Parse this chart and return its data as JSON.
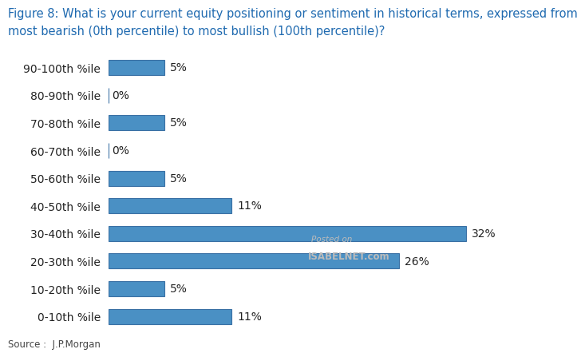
{
  "title_line1": "Figure 8: What is your current equity positioning or sentiment in historical terms, expressed from",
  "title_line2": "most bearish (0th percentile) to most bullish (100th percentile)?",
  "categories_bottom_to_top": [
    "0-10th %ile",
    "10-20th %ile",
    "20-30th %ile",
    "30-40th %ile",
    "40-50th %ile",
    "50-60th %ile",
    "60-70th %ile",
    "70-80th %ile",
    "80-90th %ile",
    "90-100th %ile"
  ],
  "values_bottom_to_top": [
    11,
    5,
    26,
    32,
    11,
    5,
    0,
    5,
    0,
    5
  ],
  "bar_color": "#4a90c4",
  "title_color": "#1f6ab0",
  "label_color": "#222222",
  "source_text": "Source :  J.P.Morgan",
  "watermark_line1": "Posted on",
  "watermark_line2": "ISABELNET.com",
  "bg_color": "#ffffff",
  "xlim_max": 37,
  "bar_height": 0.55,
  "label_fontsize": 10,
  "title_fontsize": 10.5,
  "value_fontsize": 10,
  "source_fontsize": 8.5
}
